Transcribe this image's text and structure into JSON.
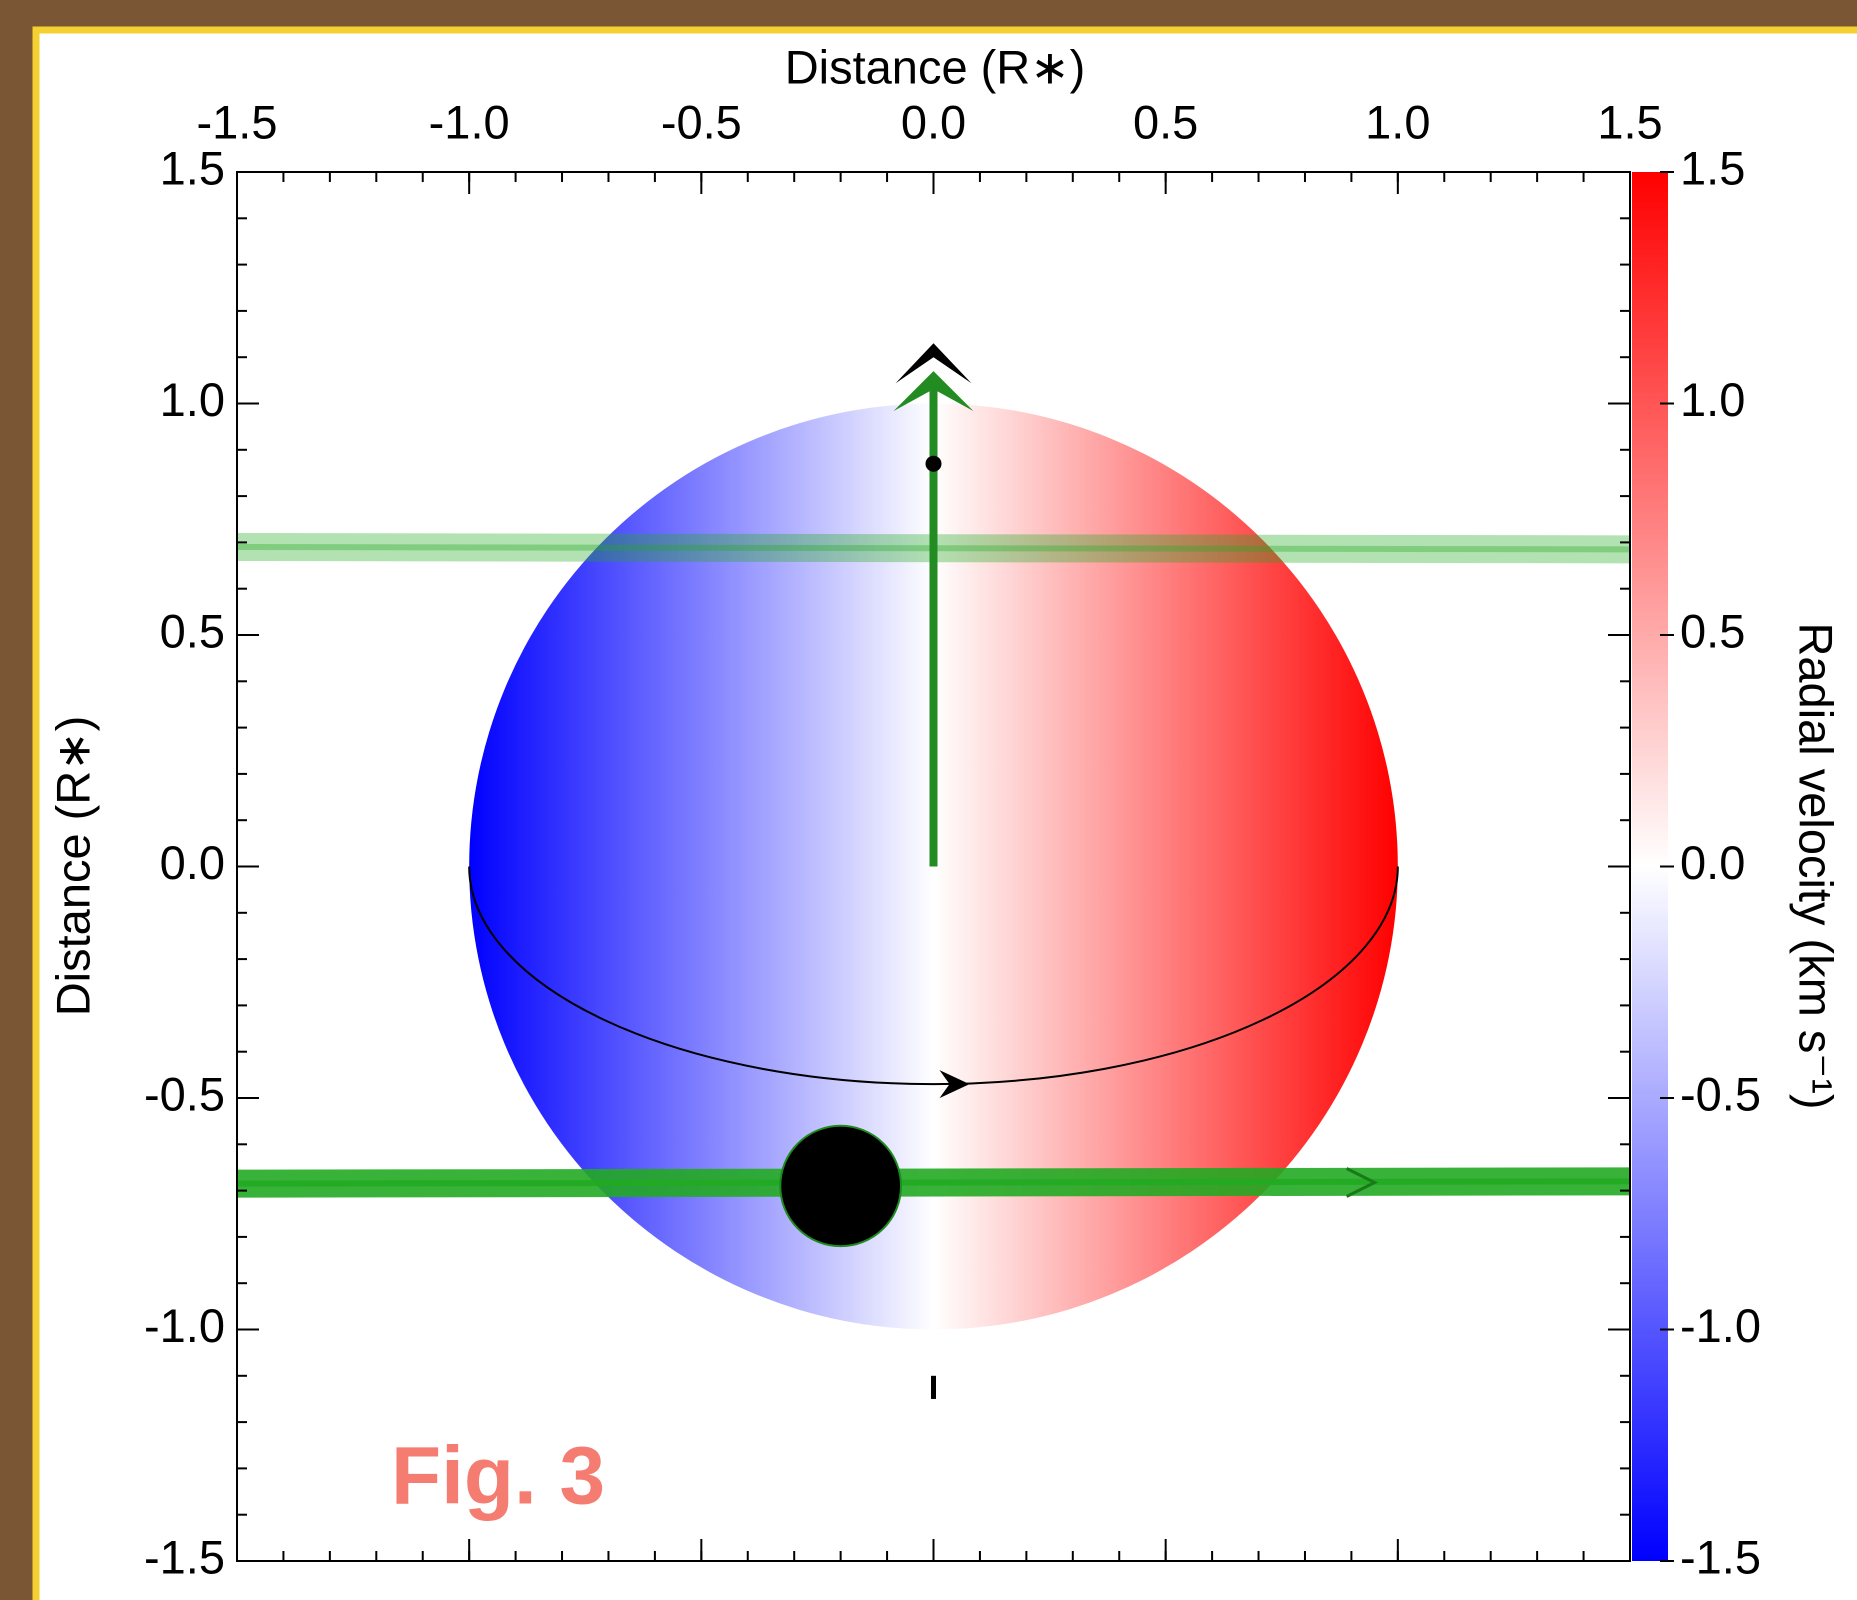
{
  "chart_data": {
    "type": "transit",
    "x_label": "Distance (R∗)",
    "y_label": "Distance (R∗)",
    "colorbar_label": "Radial velocity (km s⁻¹)",
    "annotation": "Fig. 3",
    "xlim": [
      -1.5,
      1.5
    ],
    "ylim": [
      -1.5,
      1.5
    ],
    "minor_step": 0.1,
    "xticks": [
      -1.5,
      {
        "value": -1.0,
        "label": "-1.0"
      },
      -0.5,
      {
        "value": 0,
        "label": "0.0"
      },
      0.5,
      {
        "value": 1.0,
        "label": "1.0"
      },
      1.5
    ],
    "yticks": [
      -1.5,
      {
        "value": -1.0,
        "label": "-1.0"
      },
      -0.5,
      {
        "value": 0,
        "label": "0.0"
      },
      0.5,
      {
        "value": 1.0,
        "label": "1.0"
      },
      1.5
    ],
    "clim": [
      -1.5,
      1.5
    ],
    "cticks": [
      -1.5,
      {
        "value": -1.0,
        "label": "-1.0"
      },
      -0.5,
      {
        "value": 0,
        "label": "0.0"
      },
      0.5,
      {
        "value": 1.0,
        "label": "1.0"
      },
      1.5
    ],
    "colormap": [
      "#0000ff",
      "#ffffff",
      "#ff0000"
    ],
    "star_radius": 1,
    "equator_depth": 0.47,
    "planet": {
      "x": -0.2,
      "y": -0.69,
      "radius": 0.13,
      "color": "#000000"
    },
    "chords": [
      {
        "x": [
          -1.5,
          1.5
        ],
        "y": [
          -0.685,
          -0.68
        ],
        "color": "#22aa22",
        "opacity": 0.9
      },
      {
        "x": [
          -1.5,
          1.5
        ],
        "y": [
          0.69,
          0.685
        ],
        "color": "#22aa22",
        "opacity": 0.35
      }
    ],
    "orbit_normal": {
      "y": [
        0,
        1.07
      ],
      "color": "#228b22"
    },
    "spin_axis": {
      "y": [
        -1.1,
        -1.15
      ],
      "tip": 1.13,
      "color": "#000000"
    }
  }
}
